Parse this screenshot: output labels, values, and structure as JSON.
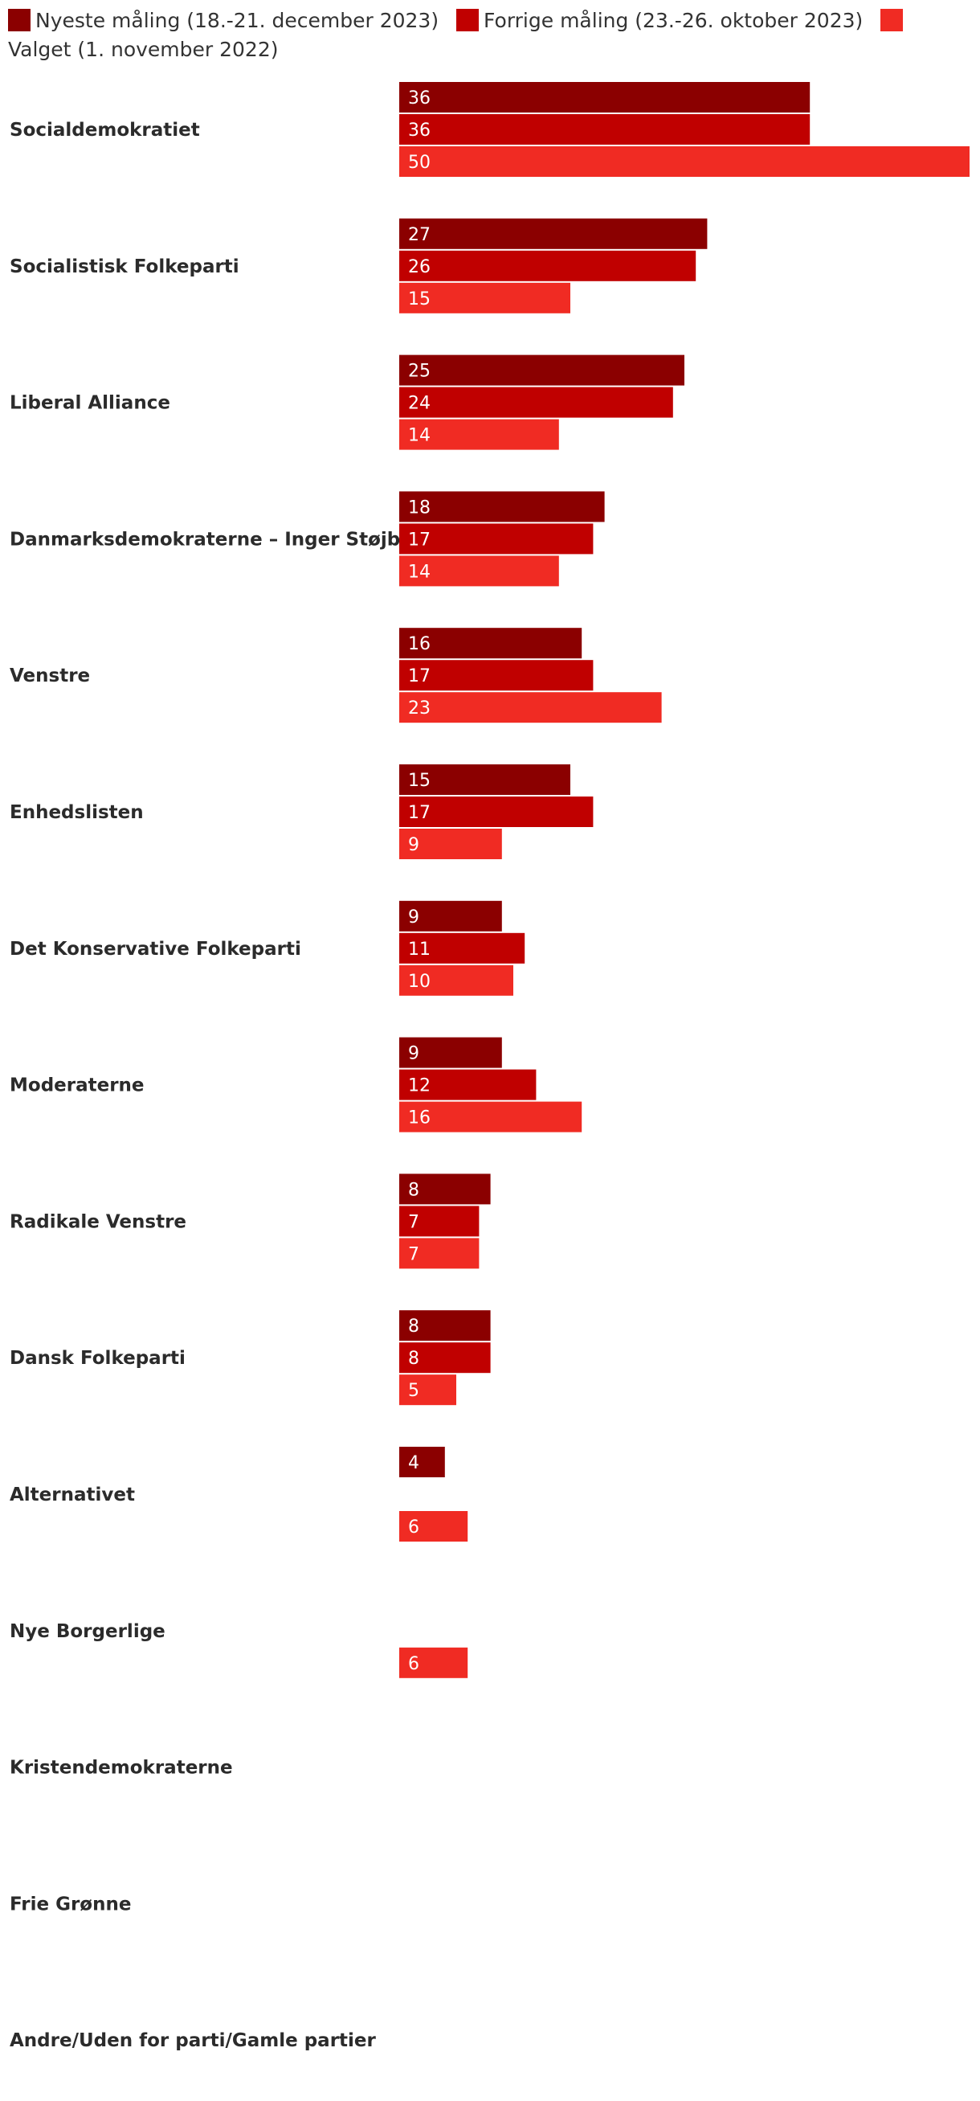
{
  "chart_data": {
    "type": "bar",
    "orientation": "horizontal",
    "title": "",
    "xlabel": "",
    "ylabel": "",
    "xlim": [
      0,
      50
    ],
    "grid": false,
    "legend_position": "top",
    "categories": [
      "Socialdemokratiet",
      "Socialistisk Folkeparti",
      "Liberal Alliance",
      "Danmarksdemokraterne – Inger Støjberg",
      "Venstre",
      "Enhedslisten",
      "Det Konservative Folkeparti",
      "Moderaterne",
      "Radikale Venstre",
      "Dansk Folkeparti",
      "Alternativet",
      "Nye Borgerlige",
      "Kristendemokraterne",
      "Frie Grønne",
      "Andre/Uden for parti/Gamle partier"
    ],
    "series": [
      {
        "name": "Nyeste måling (18.-21. december 2023)",
        "color": "#8b0000",
        "values": [
          36,
          27,
          25,
          18,
          16,
          15,
          9,
          9,
          8,
          8,
          4,
          null,
          null,
          null,
          null
        ]
      },
      {
        "name": "Forrige måling (23.-26. oktober 2023)",
        "color": "#c00000",
        "values": [
          36,
          26,
          24,
          17,
          17,
          17,
          11,
          12,
          7,
          8,
          null,
          null,
          null,
          null,
          null
        ]
      },
      {
        "name": "Valget (1. november 2022)",
        "color": "#f02b23",
        "values": [
          50,
          15,
          14,
          14,
          23,
          9,
          10,
          16,
          7,
          5,
          6,
          6,
          null,
          null,
          null
        ]
      }
    ]
  }
}
